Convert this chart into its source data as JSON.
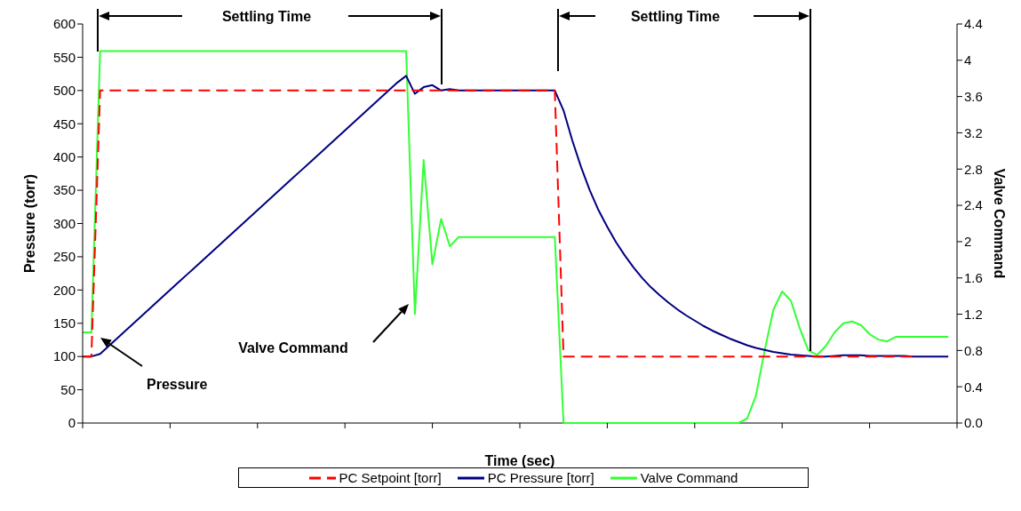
{
  "chart_data": {
    "type": "line",
    "xlabel": "Time (sec)",
    "ylabel": "Pressure (torr)",
    "y2label": "Valve Command",
    "categories": [
      null,
      null,
      null,
      null,
      null,
      null,
      null,
      null,
      null,
      null,
      null,
      null,
      null,
      null,
      null,
      null,
      null,
      null,
      null,
      null,
      null,
      null,
      null,
      null,
      null,
      null,
      null,
      null,
      null,
      null,
      null,
      null,
      null,
      null,
      null,
      null,
      null,
      null,
      null,
      null,
      null,
      null,
      null,
      null,
      null,
      null,
      null,
      null,
      null,
      null,
      null,
      null,
      null,
      null,
      null,
      null,
      null,
      null,
      null,
      null,
      null,
      null,
      null,
      null,
      null,
      null,
      null,
      null,
      null,
      null,
      null,
      null,
      null,
      null,
      null,
      null,
      null,
      null,
      null,
      null,
      null,
      null,
      null,
      null,
      null,
      null,
      null,
      null,
      null,
      null,
      null,
      null,
      null,
      null,
      null,
      null,
      null,
      null,
      null,
      null,
      null
    ],
    "series": [
      {
        "name": "PC Setpoint [torr]",
        "color": "#ff0000",
        "line_style": "dashed",
        "values": [
          100,
          100,
          500,
          500,
          500,
          500,
          500,
          500,
          500,
          500,
          500,
          500,
          500,
          500,
          500,
          500,
          500,
          500,
          500,
          500,
          500,
          500,
          500,
          500,
          500,
          500,
          500,
          500,
          500,
          500,
          500,
          500,
          500,
          500,
          500,
          500,
          500,
          500,
          500,
          500,
          500,
          500,
          500,
          500,
          500,
          500,
          500,
          500,
          500,
          500,
          500,
          500,
          500,
          500,
          500,
          100,
          100,
          100,
          100,
          100,
          100,
          100,
          100,
          100,
          100,
          100,
          100,
          100,
          100,
          100,
          100,
          100,
          100,
          100,
          100,
          100,
          100,
          100,
          100,
          100,
          100,
          100,
          100,
          100,
          100,
          100,
          100,
          100,
          100,
          100,
          100,
          100,
          100,
          100,
          100,
          100,
          null,
          null,
          null,
          null,
          null
        ]
      },
      {
        "name": "PC Pressure [torr]",
        "color": "#000080",
        "line_style": "solid",
        "values": [
          100,
          100,
          104,
          116,
          128,
          140,
          152,
          164,
          176,
          188,
          200,
          212,
          224,
          236,
          248,
          260,
          272,
          284,
          296,
          308,
          320,
          332,
          344,
          356,
          368,
          380,
          392,
          404,
          416,
          428,
          440,
          452,
          464,
          476,
          488,
          500,
          512,
          522,
          495,
          505,
          508,
          500,
          502,
          500,
          500,
          500,
          500,
          500,
          500,
          500,
          500,
          500,
          500,
          500,
          500,
          470,
          425,
          385,
          350,
          320,
          295,
          272,
          252,
          234,
          218,
          204,
          192,
          181,
          171,
          162,
          154,
          146,
          139,
          133,
          127,
          122,
          117,
          113,
          110,
          107,
          105,
          103,
          102,
          101,
          100,
          100,
          101,
          102,
          102,
          102,
          101,
          101,
          101,
          101,
          101,
          100,
          100,
          100,
          100,
          100,
          null
        ]
      },
      {
        "name": "Valve Command",
        "color": "#33ff33",
        "line_style": "solid",
        "axis": "y2",
        "values": [
          1.0,
          1.0,
          4.1,
          4.1,
          4.1,
          4.1,
          4.1,
          4.1,
          4.1,
          4.1,
          4.1,
          4.1,
          4.1,
          4.1,
          4.1,
          4.1,
          4.1,
          4.1,
          4.1,
          4.1,
          4.1,
          4.1,
          4.1,
          4.1,
          4.1,
          4.1,
          4.1,
          4.1,
          4.1,
          4.1,
          4.1,
          4.1,
          4.1,
          4.1,
          4.1,
          4.1,
          4.1,
          4.1,
          1.2,
          2.9,
          1.75,
          2.25,
          1.95,
          2.05,
          2.05,
          2.05,
          2.05,
          2.05,
          2.05,
          2.05,
          2.05,
          2.05,
          2.05,
          2.05,
          2.05,
          0,
          0,
          0,
          0,
          0,
          0,
          0,
          0,
          0,
          0,
          0,
          0,
          0,
          0,
          0,
          0,
          0,
          0,
          0,
          0,
          0,
          0.05,
          0.3,
          0.8,
          1.25,
          1.45,
          1.35,
          1.05,
          0.8,
          0.75,
          0.85,
          1.0,
          1.1,
          1.12,
          1.08,
          0.98,
          0.92,
          0.9,
          0.95,
          0.95,
          0.95,
          0.95,
          0.95,
          0.95,
          0.95,
          null
        ]
      }
    ],
    "ylim": [
      0,
      600
    ],
    "yticks": [
      0,
      50,
      100,
      150,
      200,
      250,
      300,
      350,
      400,
      450,
      500,
      550,
      600
    ],
    "y2lim": [
      0,
      4.4
    ],
    "y2ticks": [
      {
        "value": 0,
        "label": "0.0"
      },
      0.4,
      0.8,
      1.2,
      1.6,
      2.0,
      2.4,
      2.8,
      3.2,
      3.6,
      4.0,
      4.4
    ],
    "annotations": [
      "Settling Time",
      "Settling Time",
      "Pressure",
      "Valve Command"
    ],
    "legend": "bottom",
    "grid": false,
    "marker": "none"
  }
}
